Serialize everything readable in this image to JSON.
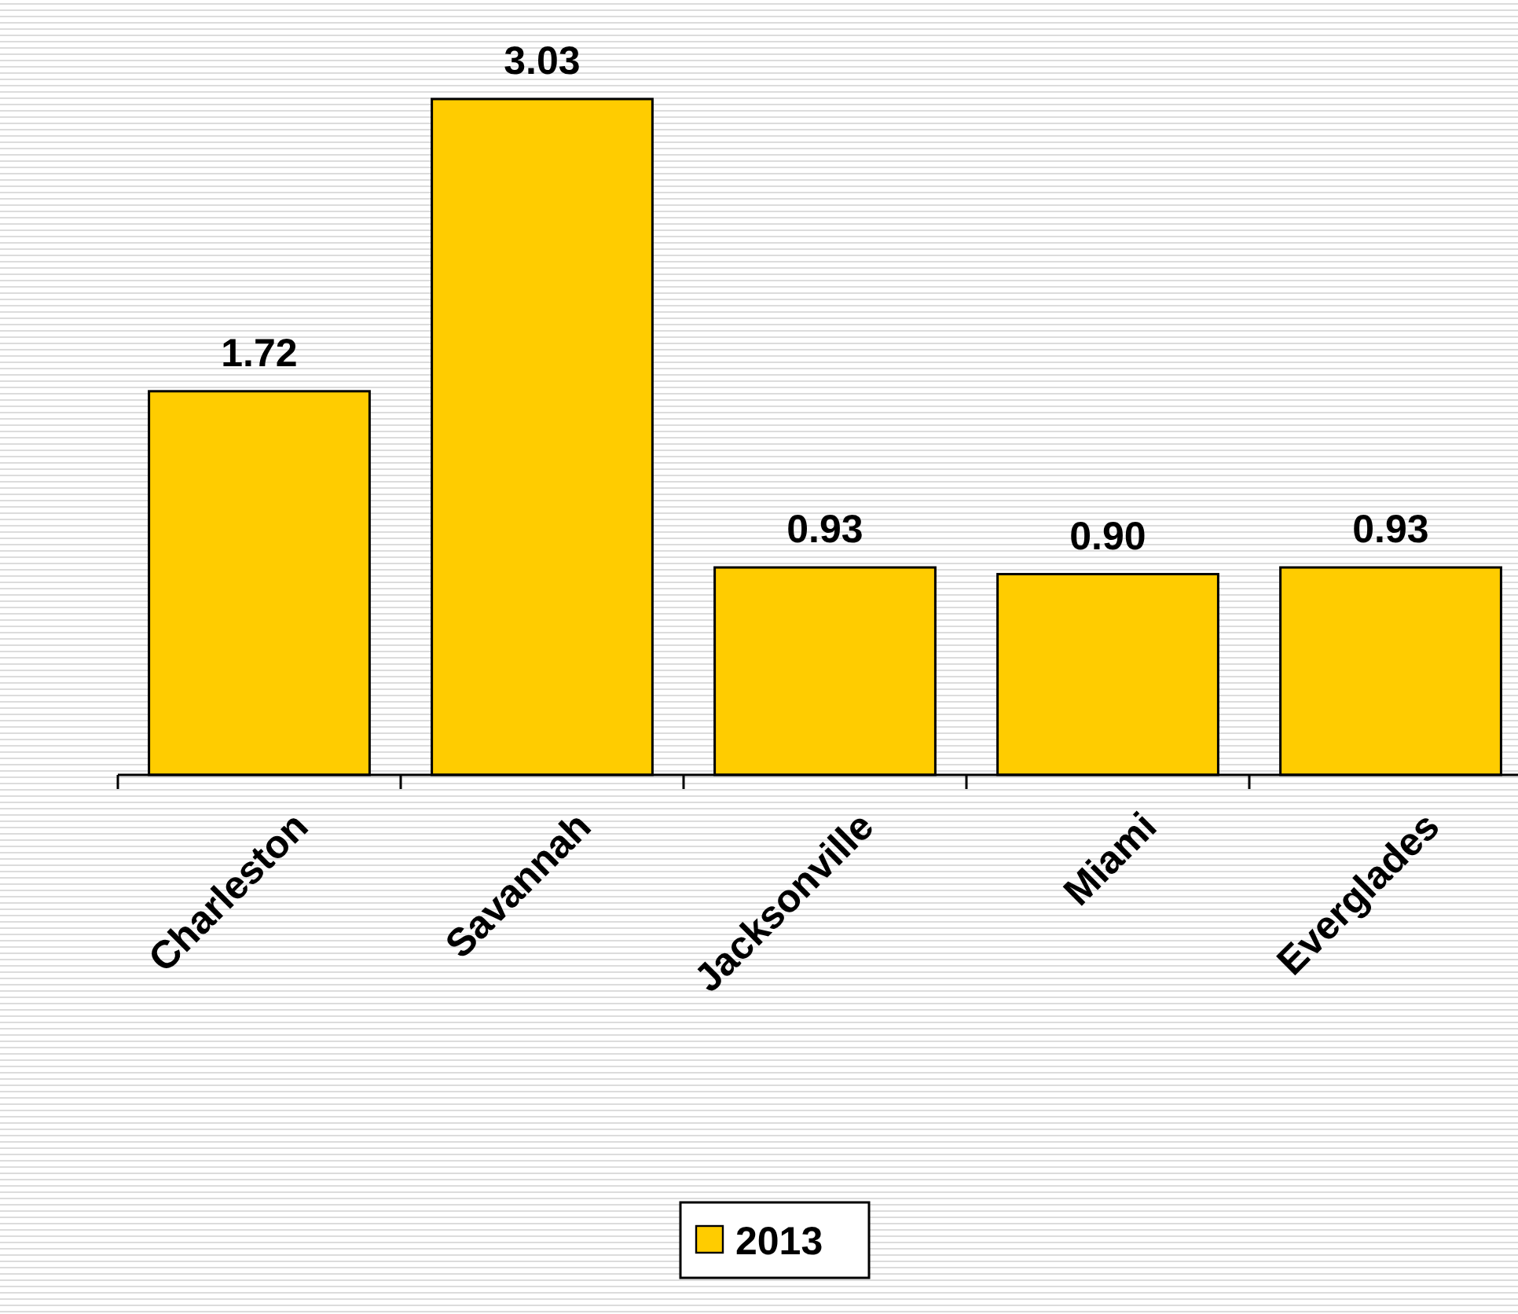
{
  "chart_data": {
    "type": "bar",
    "categories": [
      "Charleston",
      "Savannah",
      "Jacksonville",
      "Miami",
      "Everglades"
    ],
    "series": [
      {
        "name": "2013",
        "color": "#ffcc00",
        "values": [
          1.72,
          3.03,
          0.93,
          0.9,
          0.93
        ],
        "value_labels": [
          "1.72",
          "3.03",
          "0.93",
          "0.90",
          "0.93"
        ]
      }
    ],
    "legend": "bottom",
    "grid": false
  }
}
